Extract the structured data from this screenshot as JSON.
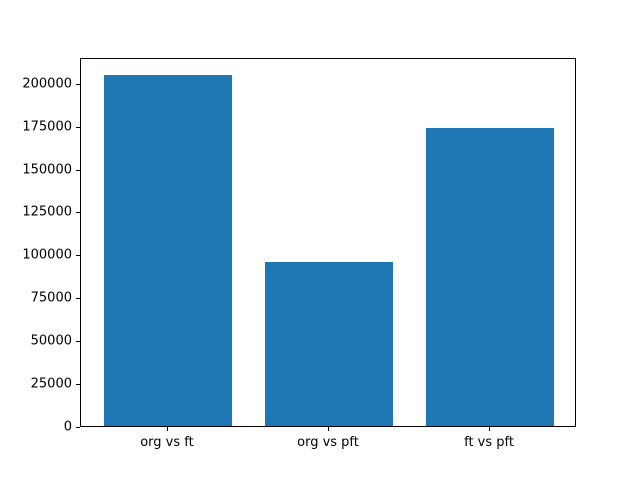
{
  "chart_data": {
    "type": "bar",
    "categories": [
      "org vs ft",
      "org vs pft",
      "ft vs pft"
    ],
    "values": [
      204500,
      95500,
      173800
    ],
    "title": "",
    "xlabel": "",
    "ylabel": "",
    "ylim": [
      0,
      215000
    ],
    "yticks": [
      0,
      25000,
      50000,
      75000,
      100000,
      125000,
      150000,
      175000,
      200000
    ],
    "bar_color": "#1f77b4",
    "spine_color": "#000000",
    "grid": false,
    "legend": null,
    "bar_width_fraction": 0.8
  },
  "figure": {
    "background": "#ffffff"
  }
}
